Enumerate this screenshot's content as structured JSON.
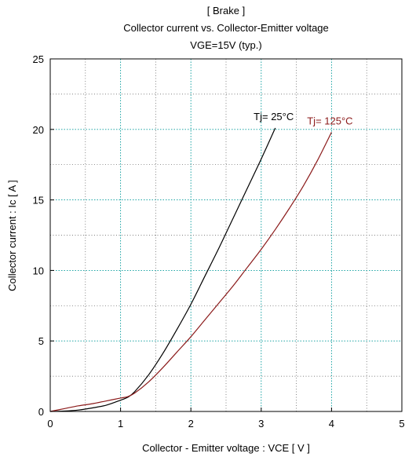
{
  "chart_data": {
    "type": "line",
    "title_lines": [
      "[ Brake ]",
      "Collector current  vs.  Collector-Emitter voltage",
      "VGE=15V  (typ.)"
    ],
    "xlabel": "Collector - Emitter voltage  :  VCE  [ V ]",
    "ylabel": "Collector current  :  Ic  [ A ]",
    "xlim": [
      0,
      5
    ],
    "ylim": [
      0,
      25
    ],
    "xticks": [
      "0",
      "1",
      "2",
      "3",
      "4",
      "5"
    ],
    "yticks": [
      "0",
      "5",
      "10",
      "15",
      "20",
      "25"
    ],
    "grid": true,
    "series": [
      {
        "name": "Tj= 25°C",
        "color": "#000000",
        "x": [
          0.0,
          0.2,
          0.4,
          0.6,
          0.8,
          1.0,
          1.1,
          1.2,
          1.4,
          1.6,
          1.8,
          2.0,
          2.2,
          2.4,
          2.6,
          2.8,
          3.0,
          3.2
        ],
        "y": [
          0.0,
          0.03,
          0.1,
          0.25,
          0.45,
          0.8,
          1.0,
          1.4,
          2.6,
          4.1,
          5.8,
          7.6,
          9.6,
          11.6,
          13.7,
          15.8,
          17.9,
          20.1
        ]
      },
      {
        "name": "Tj= 125°C",
        "color": "#8b1a1a",
        "x": [
          0.0,
          0.2,
          0.4,
          0.6,
          0.8,
          1.0,
          1.1,
          1.2,
          1.4,
          1.6,
          1.8,
          2.0,
          2.2,
          2.4,
          2.6,
          2.8,
          3.0,
          3.2,
          3.4,
          3.6,
          3.8,
          4.0
        ],
        "y": [
          0.0,
          0.2,
          0.4,
          0.55,
          0.75,
          0.95,
          1.05,
          1.3,
          2.1,
          3.1,
          4.2,
          5.3,
          6.5,
          7.7,
          8.9,
          10.2,
          11.5,
          12.9,
          14.4,
          16.0,
          17.8,
          19.8
        ]
      }
    ]
  }
}
